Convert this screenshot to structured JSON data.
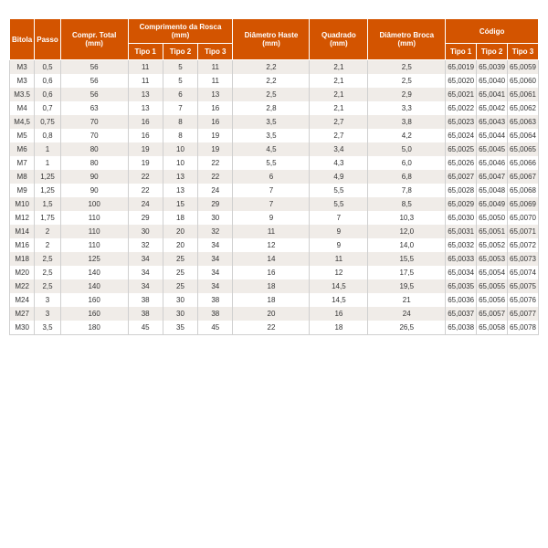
{
  "table": {
    "type": "table",
    "header_bg": "#d35400",
    "header_fg": "#ffffff",
    "row_alt_bg": "#f0ece8",
    "row_bg": "#ffffff",
    "border_color": "#d0d0d0",
    "font_size": 8,
    "headers": {
      "bitola": "Bitola",
      "passo": "Passo",
      "compr_total": "Compr. Total (mm)",
      "comp_rosca_group": "Comprimento da Rosca (mm)",
      "tipo1": "Tipo 1",
      "tipo2": "Tipo 2",
      "tipo3": "Tipo 3",
      "diam_haste": "Diâmetro Haste (mm)",
      "quadrado": "Quadrado (mm)",
      "diam_broca": "Diâmetro Broca (mm)",
      "codigo_group": "Código",
      "cod_tipo1": "Tipo 1",
      "cod_tipo2": "Tipo 2",
      "cod_tipo3": "Tipo 3"
    },
    "rows": [
      [
        "M3",
        "0,5",
        "56",
        "11",
        "5",
        "11",
        "2,2",
        "2,1",
        "2,5",
        "65,0019",
        "65,0039",
        "65,0059"
      ],
      [
        "M3",
        "0,6",
        "56",
        "11",
        "5",
        "11",
        "2,2",
        "2,1",
        "2,5",
        "65,0020",
        "65,0040",
        "65,0060"
      ],
      [
        "M3.5",
        "0,6",
        "56",
        "13",
        "6",
        "13",
        "2,5",
        "2,1",
        "2,9",
        "65,0021",
        "65,0041",
        "65,0061"
      ],
      [
        "M4",
        "0,7",
        "63",
        "13",
        "7",
        "16",
        "2,8",
        "2,1",
        "3,3",
        "65,0022",
        "65,0042",
        "65,0062"
      ],
      [
        "M4,5",
        "0,75",
        "70",
        "16",
        "8",
        "16",
        "3,5",
        "2,7",
        "3,8",
        "65,0023",
        "65,0043",
        "65,0063"
      ],
      [
        "M5",
        "0,8",
        "70",
        "16",
        "8",
        "19",
        "3,5",
        "2,7",
        "4,2",
        "65,0024",
        "65,0044",
        "65,0064"
      ],
      [
        "M6",
        "1",
        "80",
        "19",
        "10",
        "19",
        "4,5",
        "3,4",
        "5,0",
        "65,0025",
        "65,0045",
        "65,0065"
      ],
      [
        "M7",
        "1",
        "80",
        "19",
        "10",
        "22",
        "5,5",
        "4,3",
        "6,0",
        "65,0026",
        "65,0046",
        "65,0066"
      ],
      [
        "M8",
        "1,25",
        "90",
        "22",
        "13",
        "22",
        "6",
        "4,9",
        "6,8",
        "65,0027",
        "65,0047",
        "65,0067"
      ],
      [
        "M9",
        "1,25",
        "90",
        "22",
        "13",
        "24",
        "7",
        "5,5",
        "7,8",
        "65,0028",
        "65,0048",
        "65,0068"
      ],
      [
        "M10",
        "1,5",
        "100",
        "24",
        "15",
        "29",
        "7",
        "5,5",
        "8,5",
        "65,0029",
        "65,0049",
        "65,0069"
      ],
      [
        "M12",
        "1,75",
        "110",
        "29",
        "18",
        "30",
        "9",
        "7",
        "10,3",
        "65,0030",
        "65,0050",
        "65,0070"
      ],
      [
        "M14",
        "2",
        "110",
        "30",
        "20",
        "32",
        "11",
        "9",
        "12,0",
        "65,0031",
        "65,0051",
        "65,0071"
      ],
      [
        "M16",
        "2",
        "110",
        "32",
        "20",
        "34",
        "12",
        "9",
        "14,0",
        "65,0032",
        "65,0052",
        "65,0072"
      ],
      [
        "M18",
        "2,5",
        "125",
        "34",
        "25",
        "34",
        "14",
        "11",
        "15,5",
        "65,0033",
        "65,0053",
        "65,0073"
      ],
      [
        "M20",
        "2,5",
        "140",
        "34",
        "25",
        "34",
        "16",
        "12",
        "17,5",
        "65,0034",
        "65,0054",
        "65,0074"
      ],
      [
        "M22",
        "2,5",
        "140",
        "34",
        "25",
        "34",
        "18",
        "14,5",
        "19,5",
        "65,0035",
        "65,0055",
        "65,0075"
      ],
      [
        "M24",
        "3",
        "160",
        "38",
        "30",
        "38",
        "18",
        "14,5",
        "21",
        "65,0036",
        "65,0056",
        "65,0076"
      ],
      [
        "M27",
        "3",
        "160",
        "38",
        "30",
        "38",
        "20",
        "16",
        "24",
        "65,0037",
        "65,0057",
        "65,0077"
      ],
      [
        "M30",
        "3,5",
        "180",
        "45",
        "35",
        "45",
        "22",
        "18",
        "26,5",
        "65,0038",
        "65,0058",
        "65,0078"
      ]
    ]
  }
}
